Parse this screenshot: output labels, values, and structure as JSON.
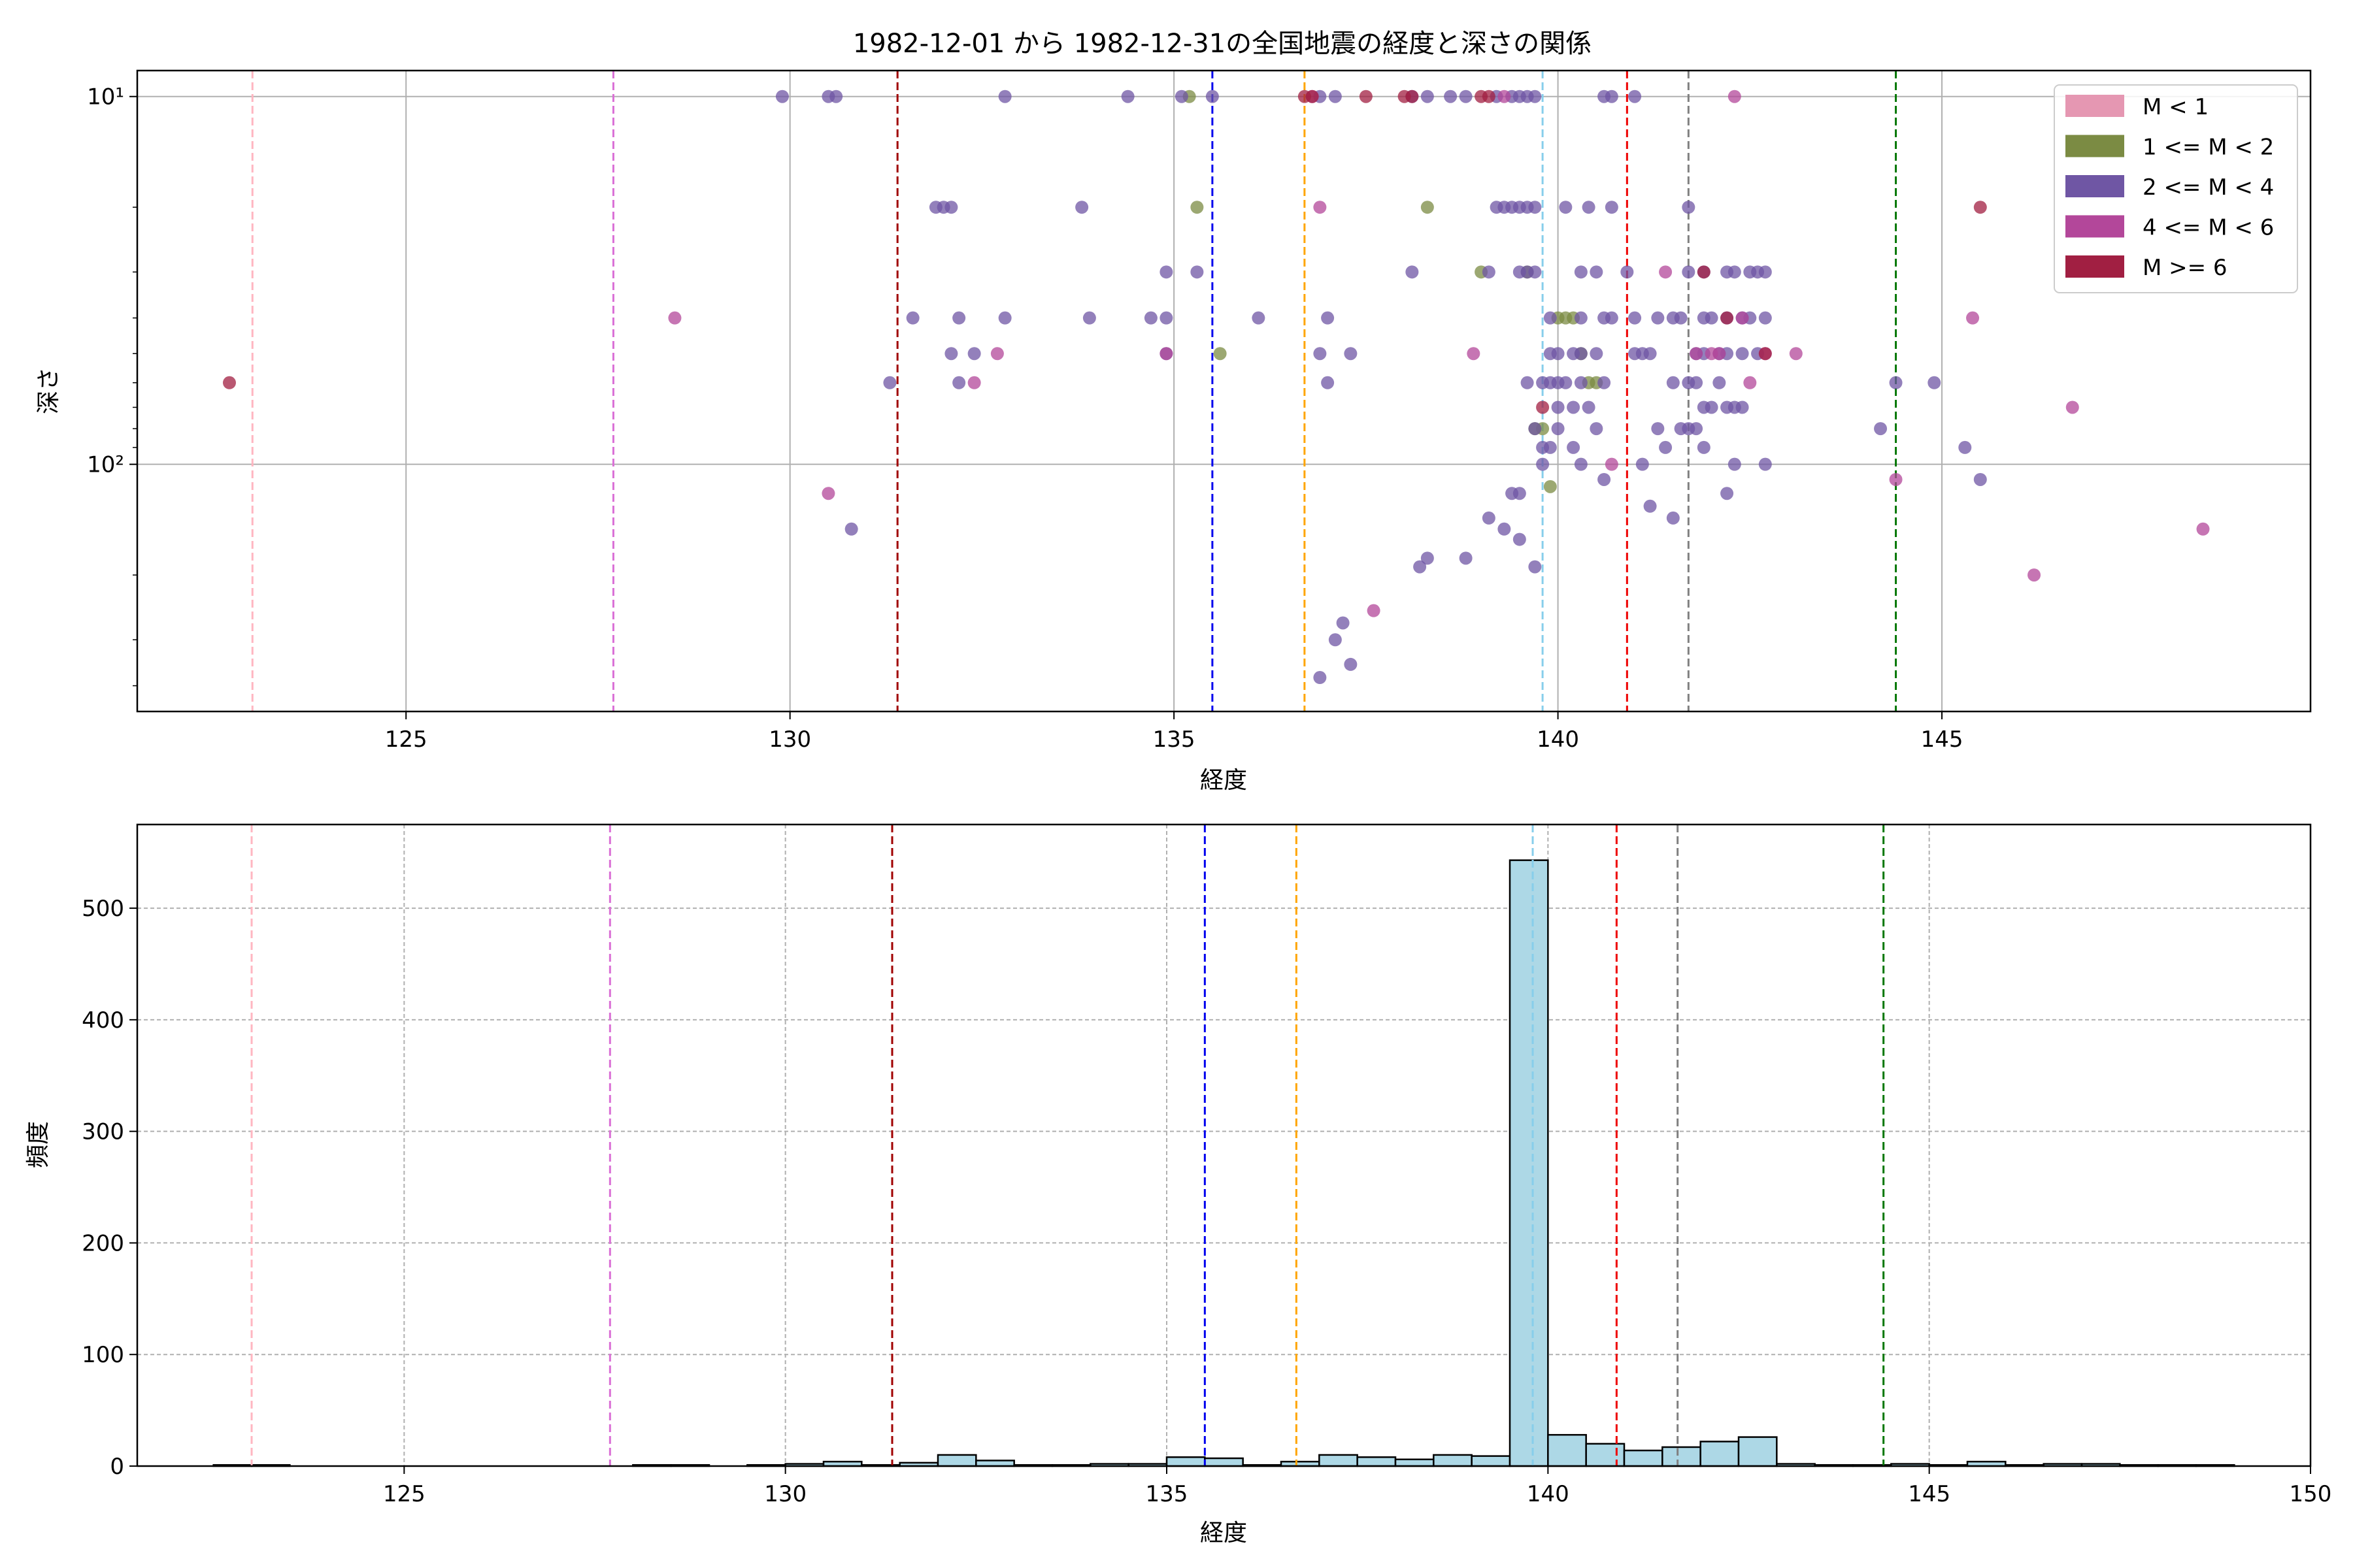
{
  "figure": {
    "title": "1982-12-01 から 1982-12-31の全国地震の経度と深さの関係"
  },
  "reference_lines": [
    {
      "x": 123.0,
      "color": "#ffb6c1"
    },
    {
      "x": 127.7,
      "color": "#da70d6"
    },
    {
      "x": 131.4,
      "color": "#a00000"
    },
    {
      "x": 135.5,
      "color": "#0000ee"
    },
    {
      "x": 136.7,
      "color": "#ffa500"
    },
    {
      "x": 139.8,
      "color": "#87ceeb"
    },
    {
      "x": 140.9,
      "color": "#ee0000"
    },
    {
      "x": 141.7,
      "color": "#808080"
    },
    {
      "x": 144.4,
      "color": "#007700"
    }
  ],
  "chart_data": [
    {
      "type": "scatter",
      "title": "1982-12-01 から 1982-12-31の全国地震の経度と深さの関係",
      "xlabel": "経度",
      "ylabel": "深さ",
      "xlim": [
        121.5,
        149.8
      ],
      "ylim": [
        470,
        8.5
      ],
      "yscale": "log",
      "y_inverted": true,
      "x_ticks": [
        125,
        130,
        135,
        140,
        145
      ],
      "y_ticks": [
        {
          "value": 10,
          "label": "10¹"
        },
        {
          "value": 100,
          "label": "10²"
        }
      ],
      "grid": true,
      "legend": {
        "position": "top-right",
        "entries": [
          {
            "label": "M < 1",
            "color": "#e597b2"
          },
          {
            "label": "1 <= M < 2",
            "color": "#7b8b43"
          },
          {
            "label": "2 <= M < 4",
            "color": "#6f56a4"
          },
          {
            "label": "4 <= M < 6",
            "color": "#b3479a"
          },
          {
            "label": "M >= 6",
            "color": "#a11f42"
          }
        ]
      },
      "series": [
        {
          "name": "1 <= M < 2",
          "color": "#7b8b43",
          "points": [
            [
              135.2,
              10
            ],
            [
              135.3,
              20
            ],
            [
              135.6,
              50
            ],
            [
              138.3,
              20
            ],
            [
              139,
              30
            ],
            [
              139.6,
              30
            ],
            [
              140,
              40
            ],
            [
              140.2,
              40
            ],
            [
              140.3,
              50
            ],
            [
              140.4,
              60
            ],
            [
              140.5,
              60
            ],
            [
              139.7,
              80
            ],
            [
              139.8,
              80
            ],
            [
              139.9,
              115
            ],
            [
              140.1,
              40
            ]
          ]
        },
        {
          "name": "2 <= M < 4",
          "color": "#6f56a4",
          "points": [
            [
              129.9,
              10
            ],
            [
              130.5,
              10
            ],
            [
              130.6,
              10
            ],
            [
              132.8,
              10
            ],
            [
              134.4,
              10
            ],
            [
              135.1,
              10
            ],
            [
              135.5,
              10
            ],
            [
              136.9,
              10
            ],
            [
              137.1,
              10
            ],
            [
              138.1,
              10
            ],
            [
              138.3,
              10
            ],
            [
              138.6,
              10
            ],
            [
              138.8,
              10
            ],
            [
              139.2,
              10
            ],
            [
              139.4,
              10
            ],
            [
              139.5,
              10
            ],
            [
              139.6,
              10
            ],
            [
              139.7,
              10
            ],
            [
              140.6,
              10
            ],
            [
              140.7,
              10
            ],
            [
              141.0,
              10
            ],
            [
              131.9,
              20
            ],
            [
              132.0,
              20
            ],
            [
              132.1,
              20
            ],
            [
              133.8,
              20
            ],
            [
              139.2,
              20
            ],
            [
              139.3,
              20
            ],
            [
              139.4,
              20
            ],
            [
              139.5,
              20
            ],
            [
              139.6,
              20
            ],
            [
              139.7,
              20
            ],
            [
              140.1,
              20
            ],
            [
              140.4,
              20
            ],
            [
              140.7,
              20
            ],
            [
              141.7,
              20
            ],
            [
              134.9,
              30
            ],
            [
              135.3,
              30
            ],
            [
              138.1,
              30
            ],
            [
              139.1,
              30
            ],
            [
              139.5,
              30
            ],
            [
              139.6,
              30
            ],
            [
              139.7,
              30
            ],
            [
              140.3,
              30
            ],
            [
              140.5,
              30
            ],
            [
              140.9,
              30
            ],
            [
              141.7,
              30
            ],
            [
              141.9,
              30
            ],
            [
              142.2,
              30
            ],
            [
              142.3,
              30
            ],
            [
              142.5,
              30
            ],
            [
              142.6,
              30
            ],
            [
              142.7,
              30
            ],
            [
              131.6,
              40
            ],
            [
              132.2,
              40
            ],
            [
              132.8,
              40
            ],
            [
              133.9,
              40
            ],
            [
              134.7,
              40
            ],
            [
              134.9,
              40
            ],
            [
              136.1,
              40
            ],
            [
              137.0,
              40
            ],
            [
              139.9,
              40
            ],
            [
              140.3,
              40
            ],
            [
              140.6,
              40
            ],
            [
              140.7,
              40
            ],
            [
              141.0,
              40
            ],
            [
              141.3,
              40
            ],
            [
              141.5,
              40
            ],
            [
              141.6,
              40
            ],
            [
              141.9,
              40
            ],
            [
              142.0,
              40
            ],
            [
              142.2,
              40
            ],
            [
              142.4,
              40
            ],
            [
              142.5,
              40
            ],
            [
              142.7,
              40
            ],
            [
              132.1,
              50
            ],
            [
              132.4,
              50
            ],
            [
              134.9,
              50
            ],
            [
              136.9,
              50
            ],
            [
              137.3,
              50
            ],
            [
              139.9,
              50
            ],
            [
              140.0,
              50
            ],
            [
              140.2,
              50
            ],
            [
              140.3,
              50
            ],
            [
              140.5,
              50
            ],
            [
              141.0,
              50
            ],
            [
              141.1,
              50
            ],
            [
              141.2,
              50
            ],
            [
              141.8,
              50
            ],
            [
              141.9,
              50
            ],
            [
              142.1,
              50
            ],
            [
              142.2,
              50
            ],
            [
              142.4,
              50
            ],
            [
              142.6,
              50
            ],
            [
              131.3,
              60
            ],
            [
              132.2,
              60
            ],
            [
              137.0,
              60
            ],
            [
              139.6,
              60
            ],
            [
              139.8,
              60
            ],
            [
              139.9,
              60
            ],
            [
              140.0,
              60
            ],
            [
              140.1,
              60
            ],
            [
              140.3,
              60
            ],
            [
              140.6,
              60
            ],
            [
              141.5,
              60
            ],
            [
              141.7,
              60
            ],
            [
              141.8,
              60
            ],
            [
              142.1,
              60
            ],
            [
              144.4,
              60
            ],
            [
              144.9,
              60
            ],
            [
              140.0,
              70
            ],
            [
              140.2,
              70
            ],
            [
              140.4,
              70
            ],
            [
              141.9,
              70
            ],
            [
              142.0,
              70
            ],
            [
              142.2,
              70
            ],
            [
              142.3,
              70
            ],
            [
              142.4,
              70
            ],
            [
              139.7,
              80
            ],
            [
              140.0,
              80
            ],
            [
              140.5,
              80
            ],
            [
              141.3,
              80
            ],
            [
              141.6,
              80
            ],
            [
              141.7,
              80
            ],
            [
              141.8,
              80
            ],
            [
              144.2,
              80
            ],
            [
              139.8,
              90
            ],
            [
              139.9,
              90
            ],
            [
              140.2,
              90
            ],
            [
              141.4,
              90
            ],
            [
              141.9,
              90
            ],
            [
              145.3,
              90
            ],
            [
              139.8,
              100
            ],
            [
              140.3,
              100
            ],
            [
              141.1,
              100
            ],
            [
              142.3,
              100
            ],
            [
              142.7,
              100
            ],
            [
              145.5,
              110
            ],
            [
              139.5,
              120
            ],
            [
              139.4,
              120
            ],
            [
              142.2,
              120
            ],
            [
              140.6,
              110
            ],
            [
              141.2,
              130
            ],
            [
              141.5,
              140
            ],
            [
              130.8,
              150
            ],
            [
              139.3,
              150
            ],
            [
              139.1,
              140
            ],
            [
              139.5,
              160
            ],
            [
              138.8,
              180
            ],
            [
              138.3,
              180
            ],
            [
              138.2,
              190
            ],
            [
              139.7,
              190
            ],
            [
              137.2,
              270
            ],
            [
              137.1,
              300
            ],
            [
              137.3,
              350
            ],
            [
              136.9,
              380
            ]
          ]
        },
        {
          "name": "4 <= M < 6",
          "color": "#b3479a",
          "points": [
            [
              128.5,
              40
            ],
            [
              130.5,
              120
            ],
            [
              132.4,
              60
            ],
            [
              132.7,
              50
            ],
            [
              134.9,
              50
            ],
            [
              136.8,
              10
            ],
            [
              136.9,
              20
            ],
            [
              137.6,
              250
            ],
            [
              138.9,
              50
            ],
            [
              139.3,
              10
            ],
            [
              140.7,
              100
            ],
            [
              141.4,
              30
            ],
            [
              141.8,
              50
            ],
            [
              142.0,
              50
            ],
            [
              142.1,
              50
            ],
            [
              142.5,
              60
            ],
            [
              142.7,
              50
            ],
            [
              143.1,
              50
            ],
            [
              142.4,
              40
            ],
            [
              142.3,
              10
            ],
            [
              145.4,
              40
            ],
            [
              144.4,
              110
            ],
            [
              146.7,
              70
            ],
            [
              146.2,
              200
            ],
            [
              148.4,
              150
            ]
          ]
        },
        {
          "name": "M >= 6",
          "color": "#a11f42",
          "points": [
            [
              122.7,
              60
            ],
            [
              136.7,
              10
            ],
            [
              136.8,
              10
            ],
            [
              137.5,
              10
            ],
            [
              138.0,
              10
            ],
            [
              138.1,
              10
            ],
            [
              139.0,
              10
            ],
            [
              139.1,
              10
            ],
            [
              139.8,
              70
            ],
            [
              141.9,
              30
            ],
            [
              142.2,
              40
            ],
            [
              142.7,
              50
            ],
            [
              145.5,
              20
            ]
          ]
        }
      ]
    },
    {
      "type": "bar",
      "title": "",
      "xlabel": "経度",
      "ylabel": "頻度",
      "xlim": [
        121.5,
        150
      ],
      "ylim": [
        0,
        575
      ],
      "x_ticks": [
        125,
        130,
        135,
        140,
        145,
        150
      ],
      "y_ticks": [
        0,
        100,
        200,
        300,
        400,
        500
      ],
      "grid": true,
      "color": "#add8e6",
      "bin_width": 0.5,
      "bins": [
        [
          122.5,
          1
        ],
        [
          123.0,
          1
        ],
        [
          128.0,
          1
        ],
        [
          128.5,
          1
        ],
        [
          129.5,
          1
        ],
        [
          130.0,
          2
        ],
        [
          130.5,
          4
        ],
        [
          131.0,
          1
        ],
        [
          131.5,
          3
        ],
        [
          132.0,
          10
        ],
        [
          132.5,
          5
        ],
        [
          133.0,
          1
        ],
        [
          133.5,
          1
        ],
        [
          134.0,
          2
        ],
        [
          134.5,
          2
        ],
        [
          135.0,
          8
        ],
        [
          135.5,
          7
        ],
        [
          136.0,
          1
        ],
        [
          136.5,
          4
        ],
        [
          137.0,
          10
        ],
        [
          137.5,
          8
        ],
        [
          138.0,
          6
        ],
        [
          138.5,
          10
        ],
        [
          139.0,
          9
        ],
        [
          139.5,
          543
        ],
        [
          140.0,
          28
        ],
        [
          140.5,
          20
        ],
        [
          141.0,
          14
        ],
        [
          141.5,
          17
        ],
        [
          142.0,
          22
        ],
        [
          142.5,
          26
        ],
        [
          143.0,
          2
        ],
        [
          143.5,
          1
        ],
        [
          144.0,
          1
        ],
        [
          144.5,
          2
        ],
        [
          145.0,
          1
        ],
        [
          145.5,
          4
        ],
        [
          146.0,
          1
        ],
        [
          146.5,
          2
        ],
        [
          147.0,
          2
        ],
        [
          147.5,
          1
        ],
        [
          148.0,
          1
        ],
        [
          148.5,
          1
        ]
      ]
    }
  ]
}
